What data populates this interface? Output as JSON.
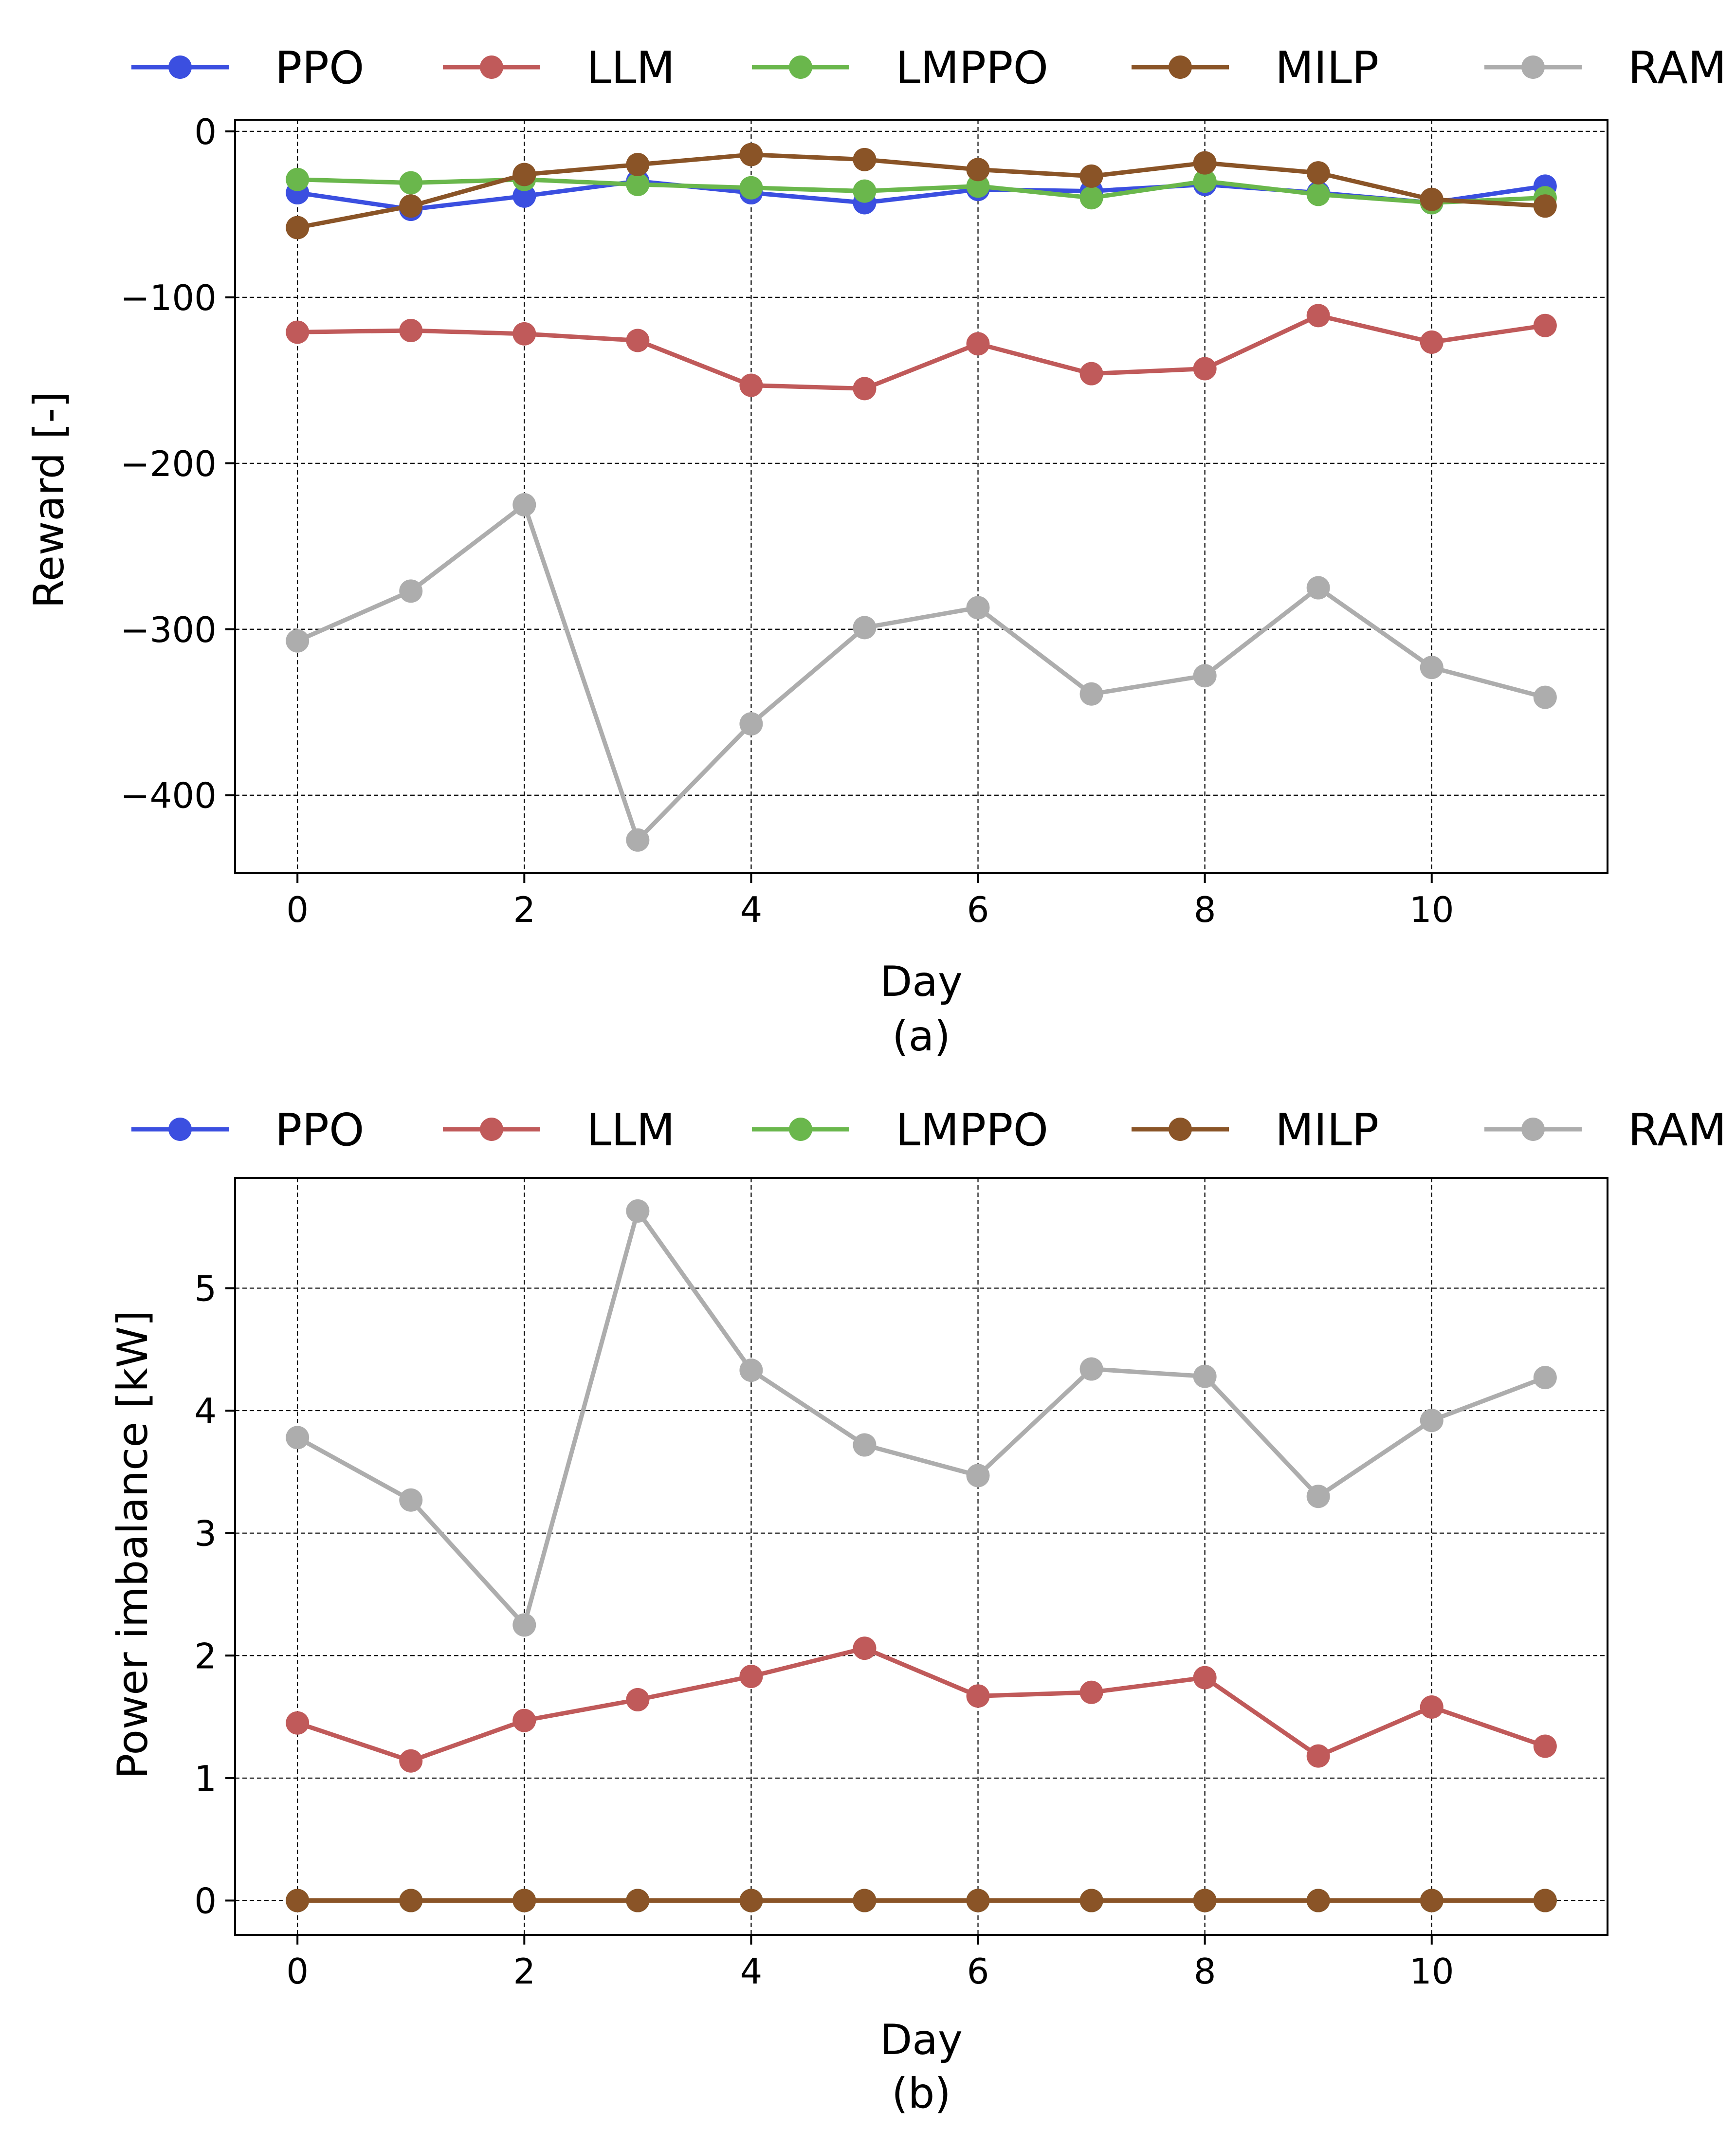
{
  "chart_data": [
    {
      "type": "line",
      "panel_label": "(a)",
      "xlabel": "Day",
      "ylabel": "Reward [-]",
      "x": [
        0,
        1,
        2,
        3,
        4,
        5,
        6,
        7,
        8,
        9,
        10,
        11
      ],
      "xlim": [
        -0.55,
        11.55
      ],
      "ylim": [
        -447,
        7
      ],
      "xticks": [
        0,
        2,
        4,
        6,
        8,
        10
      ],
      "xtick_labels": [
        "0",
        "2",
        "4",
        "6",
        "8",
        "10"
      ],
      "yticks": [
        0,
        -100,
        -200,
        -300,
        -400
      ],
      "ytick_labels": [
        "0",
        "−100",
        "−200",
        "−300",
        "−400"
      ],
      "grid": true,
      "legend_position": "top",
      "series": [
        {
          "name": "PPO",
          "color": "#3b4fe0",
          "values": [
            -37,
            -47,
            -39,
            -30,
            -37,
            -43,
            -35,
            -36,
            -32,
            -37,
            -43,
            -33
          ]
        },
        {
          "name": "LLM",
          "color": "#c05a5a",
          "values": [
            -121,
            -120,
            -122,
            -126,
            -153,
            -155,
            -128,
            -146,
            -143,
            -111,
            -127,
            -117
          ]
        },
        {
          "name": "LMPPO",
          "color": "#6ab74c",
          "values": [
            -29,
            -31,
            -29,
            -32,
            -34,
            -36,
            -33,
            -40,
            -30,
            -38,
            -43,
            -40
          ]
        },
        {
          "name": "MILP",
          "color": "#8a5427",
          "values": [
            -58,
            -45,
            -26,
            -20,
            -14,
            -17,
            -23,
            -27,
            -19,
            -25,
            -41,
            -45
          ]
        },
        {
          "name": "RAM",
          "color": "#adadad",
          "values": [
            -307,
            -277,
            -225,
            -427,
            -357,
            -299,
            -287,
            -339,
            -328,
            -275,
            -323,
            -341
          ]
        }
      ]
    },
    {
      "type": "line",
      "panel_label": "(b)",
      "xlabel": "Day",
      "ylabel": "Power imbalance [kW]",
      "x": [
        0,
        1,
        2,
        3,
        4,
        5,
        6,
        7,
        8,
        9,
        10,
        11
      ],
      "xlim": [
        -0.55,
        11.55
      ],
      "ylim": [
        -0.28,
        5.9
      ],
      "xticks": [
        0,
        2,
        4,
        6,
        8,
        10
      ],
      "xtick_labels": [
        "0",
        "2",
        "4",
        "6",
        "8",
        "10"
      ],
      "yticks": [
        0,
        1,
        2,
        3,
        4,
        5
      ],
      "ytick_labels": [
        "0",
        "1",
        "2",
        "3",
        "4",
        "5"
      ],
      "grid": true,
      "legend_position": "top",
      "series": [
        {
          "name": "PPO",
          "color": "#3b4fe0",
          "values": [
            0,
            0,
            0,
            0,
            0,
            0,
            0,
            0,
            0,
            0,
            0,
            0
          ]
        },
        {
          "name": "LLM",
          "color": "#c05a5a",
          "values": [
            1.45,
            1.14,
            1.47,
            1.64,
            1.83,
            2.06,
            1.67,
            1.7,
            1.82,
            1.18,
            1.58,
            1.26
          ]
        },
        {
          "name": "LMPPO",
          "color": "#6ab74c",
          "values": [
            0,
            0,
            0,
            0,
            0,
            0,
            0,
            0,
            0,
            0,
            0,
            0
          ]
        },
        {
          "name": "MILP",
          "color": "#8a5427",
          "values": [
            0,
            0,
            0,
            0,
            0,
            0,
            0,
            0,
            0,
            0,
            0,
            0
          ]
        },
        {
          "name": "RAM",
          "color": "#adadad",
          "values": [
            3.78,
            3.27,
            2.25,
            5.63,
            4.33,
            3.72,
            3.47,
            4.34,
            4.28,
            3.3,
            3.92,
            4.27
          ]
        }
      ]
    }
  ]
}
